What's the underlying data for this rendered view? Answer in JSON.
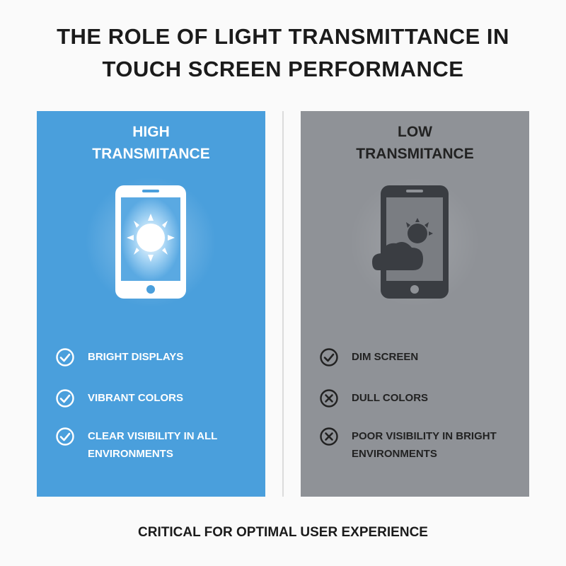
{
  "title": [
    "THE ROLE OF LIGHT TRANSMITTANCE IN",
    "TOUCH SCREEN PERFORMANCE"
  ],
  "panels": [
    {
      "heading": [
        "HIGH",
        "TRANSMITANCE"
      ],
      "color": "#4a9fdc",
      "text_color": "#ffffff",
      "items": [
        {
          "icon": "check",
          "text": "BRIGHT DISPLAYS"
        },
        {
          "icon": "check",
          "text": "VIBRANT COLORS"
        },
        {
          "icon": "check",
          "text": "CLEAR VISIBILITY IN ALL ENVIRONMENTS"
        }
      ]
    },
    {
      "heading": [
        "LOW",
        "TRANSMITANCE"
      ],
      "color": "#8f9297",
      "text_color": "#222222",
      "items": [
        {
          "icon": "check",
          "text": "DIM SCREEN"
        },
        {
          "icon": "cross",
          "text": "DULL COLORS"
        },
        {
          "icon": "cross",
          "text": "POOR VISIBILITY IN BRIGHT ENVIRONMENTS"
        }
      ]
    }
  ],
  "footer": "CRITICAL FOR OPTIMAL USER EXPERIENCE"
}
